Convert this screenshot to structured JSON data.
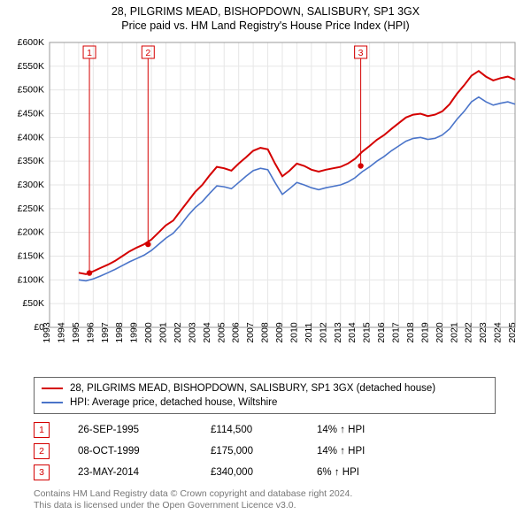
{
  "title_line1": "28, PILGRIMS MEAD, BISHOPDOWN, SALISBURY, SP1 3GX",
  "title_line2": "Price paid vs. HM Land Registry's House Price Index (HPI)",
  "chart": {
    "type": "line",
    "background_color": "#ffffff",
    "plot_border_color": "#999999",
    "grid_color": "#e6e6e6",
    "yaxis": {
      "min": 0,
      "max": 600,
      "tick_step": 50,
      "tick_format_prefix": "£",
      "tick_format_suffix": "K",
      "label_fontsize": 10.5
    },
    "xaxis": {
      "years": [
        1993,
        1994,
        1995,
        1996,
        1997,
        1998,
        1999,
        2000,
        2001,
        2002,
        2003,
        2004,
        2005,
        2006,
        2007,
        2008,
        2009,
        2010,
        2011,
        2012,
        2013,
        2014,
        2015,
        2016,
        2017,
        2018,
        2019,
        2020,
        2021,
        2022,
        2023,
        2024,
        2025
      ],
      "label_fontsize": 10.5,
      "rotation_deg": -90
    },
    "series": [
      {
        "name": "property",
        "label": "28, PILGRIMS MEAD, BISHOPDOWN, SALISBURY, SP1 3GX (detached house)",
        "color": "#d40000",
        "line_width": 2,
        "points": [
          [
            1995.0,
            115
          ],
          [
            1995.5,
            112
          ],
          [
            1996.0,
            118
          ],
          [
            1996.5,
            125
          ],
          [
            1997.0,
            132
          ],
          [
            1997.5,
            140
          ],
          [
            1998.0,
            150
          ],
          [
            1998.5,
            160
          ],
          [
            1999.0,
            168
          ],
          [
            1999.5,
            175
          ],
          [
            2000.0,
            185
          ],
          [
            2000.5,
            200
          ],
          [
            2001.0,
            215
          ],
          [
            2001.5,
            225
          ],
          [
            2002.0,
            245
          ],
          [
            2002.5,
            265
          ],
          [
            2003.0,
            285
          ],
          [
            2003.5,
            300
          ],
          [
            2004.0,
            320
          ],
          [
            2004.5,
            338
          ],
          [
            2005.0,
            335
          ],
          [
            2005.5,
            330
          ],
          [
            2006.0,
            345
          ],
          [
            2006.5,
            358
          ],
          [
            2007.0,
            372
          ],
          [
            2007.5,
            378
          ],
          [
            2008.0,
            375
          ],
          [
            2008.5,
            345
          ],
          [
            2009.0,
            318
          ],
          [
            2009.5,
            330
          ],
          [
            2010.0,
            345
          ],
          [
            2010.5,
            340
          ],
          [
            2011.0,
            332
          ],
          [
            2011.5,
            328
          ],
          [
            2012.0,
            332
          ],
          [
            2012.5,
            335
          ],
          [
            2013.0,
            338
          ],
          [
            2013.5,
            345
          ],
          [
            2014.0,
            355
          ],
          [
            2014.5,
            370
          ],
          [
            2015.0,
            382
          ],
          [
            2015.5,
            395
          ],
          [
            2016.0,
            405
          ],
          [
            2016.5,
            418
          ],
          [
            2017.0,
            430
          ],
          [
            2017.5,
            442
          ],
          [
            2018.0,
            448
          ],
          [
            2018.5,
            450
          ],
          [
            2019.0,
            445
          ],
          [
            2019.5,
            448
          ],
          [
            2020.0,
            455
          ],
          [
            2020.5,
            470
          ],
          [
            2021.0,
            492
          ],
          [
            2021.5,
            510
          ],
          [
            2022.0,
            530
          ],
          [
            2022.5,
            540
          ],
          [
            2023.0,
            528
          ],
          [
            2023.5,
            520
          ],
          [
            2024.0,
            525
          ],
          [
            2024.5,
            528
          ],
          [
            2025.0,
            522
          ]
        ]
      },
      {
        "name": "hpi",
        "label": "HPI: Average price, detached house, Wiltshire",
        "color": "#4a74c9",
        "line_width": 1.6,
        "points": [
          [
            1995.0,
            100
          ],
          [
            1995.5,
            98
          ],
          [
            1996.0,
            102
          ],
          [
            1996.5,
            108
          ],
          [
            1997.0,
            115
          ],
          [
            1997.5,
            122
          ],
          [
            1998.0,
            130
          ],
          [
            1998.5,
            138
          ],
          [
            1999.0,
            145
          ],
          [
            1999.5,
            152
          ],
          [
            2000.0,
            162
          ],
          [
            2000.5,
            175
          ],
          [
            2001.0,
            188
          ],
          [
            2001.5,
            198
          ],
          [
            2002.0,
            215
          ],
          [
            2002.5,
            235
          ],
          [
            2003.0,
            252
          ],
          [
            2003.5,
            265
          ],
          [
            2004.0,
            282
          ],
          [
            2004.5,
            298
          ],
          [
            2005.0,
            296
          ],
          [
            2005.5,
            292
          ],
          [
            2006.0,
            305
          ],
          [
            2006.5,
            318
          ],
          [
            2007.0,
            330
          ],
          [
            2007.5,
            335
          ],
          [
            2008.0,
            332
          ],
          [
            2008.5,
            305
          ],
          [
            2009.0,
            280
          ],
          [
            2009.5,
            292
          ],
          [
            2010.0,
            305
          ],
          [
            2010.5,
            300
          ],
          [
            2011.0,
            294
          ],
          [
            2011.5,
            290
          ],
          [
            2012.0,
            294
          ],
          [
            2012.5,
            297
          ],
          [
            2013.0,
            300
          ],
          [
            2013.5,
            306
          ],
          [
            2014.0,
            315
          ],
          [
            2014.5,
            328
          ],
          [
            2015.0,
            338
          ],
          [
            2015.5,
            350
          ],
          [
            2016.0,
            360
          ],
          [
            2016.5,
            372
          ],
          [
            2017.0,
            382
          ],
          [
            2017.5,
            392
          ],
          [
            2018.0,
            398
          ],
          [
            2018.5,
            400
          ],
          [
            2019.0,
            396
          ],
          [
            2019.5,
            398
          ],
          [
            2020.0,
            405
          ],
          [
            2020.5,
            418
          ],
          [
            2021.0,
            438
          ],
          [
            2021.5,
            455
          ],
          [
            2022.0,
            475
          ],
          [
            2022.5,
            485
          ],
          [
            2023.0,
            475
          ],
          [
            2023.5,
            468
          ],
          [
            2024.0,
            472
          ],
          [
            2024.5,
            475
          ],
          [
            2025.0,
            470
          ]
        ]
      }
    ],
    "sale_markers": [
      {
        "n": "1",
        "year": 1995.74,
        "price_k": 114.5
      },
      {
        "n": "2",
        "year": 1999.77,
        "price_k": 175
      },
      {
        "n": "3",
        "year": 2014.39,
        "price_k": 340
      }
    ]
  },
  "legend": {
    "border_color": "#666666",
    "items": [
      {
        "color": "#d40000",
        "text": "28, PILGRIMS MEAD, BISHOPDOWN, SALISBURY, SP1 3GX (detached house)"
      },
      {
        "color": "#4a74c9",
        "text": "HPI: Average price, detached house, Wiltshire"
      }
    ]
  },
  "sales": [
    {
      "n": "1",
      "date": "26-SEP-1995",
      "price": "£114,500",
      "delta": "14% ↑ HPI"
    },
    {
      "n": "2",
      "date": "08-OCT-1999",
      "price": "£175,000",
      "delta": "14% ↑ HPI"
    },
    {
      "n": "3",
      "date": "23-MAY-2014",
      "price": "£340,000",
      "delta": "6% ↑ HPI"
    }
  ],
  "footer": {
    "line1": "Contains HM Land Registry data © Crown copyright and database right 2024.",
    "line2": "This data is licensed under the Open Government Licence v3.0."
  },
  "marker_color": "#d40000"
}
